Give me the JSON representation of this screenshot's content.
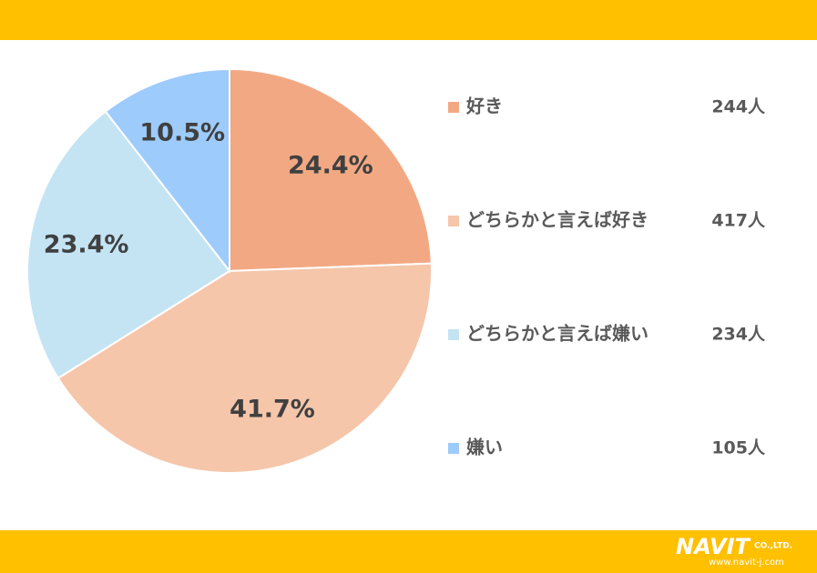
{
  "chart_data": {
    "type": "pie",
    "categories": [
      "好き",
      "どちらかと言えば好き",
      "どちらかと言えば嫌い",
      "嫌い"
    ],
    "values": [
      24.4,
      41.7,
      23.4,
      10.5
    ],
    "value_labels": [
      "24.4%",
      "41.7%",
      "23.4%",
      "10.5%"
    ],
    "colors": [
      "#F2A983",
      "#F5C6AA",
      "#C4E4F4",
      "#9DCBFB"
    ],
    "counts": [
      {
        "value": 244,
        "label": "244人"
      },
      {
        "value": 417,
        "label": "417人"
      },
      {
        "value": 234,
        "label": "234人"
      },
      {
        "value": 105,
        "label": "105人"
      }
    ],
    "legend": "right"
  },
  "footer": {
    "brand": "NAVIT",
    "company": "CO.,LTD.",
    "url": "www.navit-j.com"
  }
}
